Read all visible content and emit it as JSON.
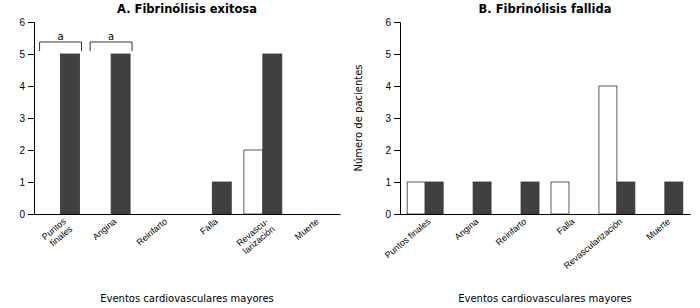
{
  "chart_data": [
    {
      "type": "bar",
      "title": "A. Fibrinólisis exitosa",
      "xlabel": "Eventos cardiovasculares mayores",
      "categories": [
        "Puntos\nfinales",
        "Angina",
        "Reinfarto",
        "Falla",
        "Revascu-\nlarización",
        "Muerte"
      ],
      "series": [
        {
          "color": "#ffffff",
          "values": [
            0,
            0,
            0,
            0,
            2,
            0
          ]
        },
        {
          "color": "#404040",
          "values": [
            5,
            5,
            0,
            1,
            5,
            0
          ]
        }
      ],
      "ylim": [
        0,
        6
      ],
      "yticks": [
        0,
        1,
        2,
        3,
        4,
        5,
        6
      ],
      "grid": false,
      "annotations": [
        {
          "category": "Puntos\nfinales",
          "text": "a"
        },
        {
          "category": "Angina",
          "text": "a"
        }
      ]
    },
    {
      "type": "bar",
      "title": "B. Fibrinólisis fallida",
      "xlabel": "Eventos cardiovasculares mayores",
      "ylabel": "Número de pacientes",
      "categories": [
        "Puntos finales",
        "Angina",
        "Reinfarto",
        "Falla",
        "Revascularización",
        "Muerte"
      ],
      "series": [
        {
          "color": "#ffffff",
          "values": [
            1,
            0,
            0,
            1,
            4,
            0
          ]
        },
        {
          "color": "#404040",
          "values": [
            1,
            1,
            1,
            0,
            1,
            1
          ]
        }
      ],
      "ylim": [
        0,
        6
      ],
      "yticks": [
        0,
        1,
        2,
        3,
        4,
        5,
        6
      ],
      "grid": false
    }
  ]
}
